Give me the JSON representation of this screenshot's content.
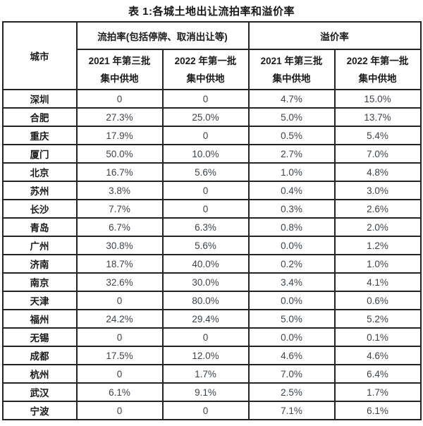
{
  "title": "表 1:各城土地出让流拍率和溢价率",
  "chart_data": {
    "type": "table",
    "title": "表 1:各城土地出让流拍率和溢价率",
    "columns": {
      "city": "城市",
      "groups": [
        {
          "label": "流拍率(包括停牌、取消出让等)",
          "subcolumns": [
            "2021 年第三批\n集中供地",
            "2022 年第一批\n集中供地"
          ]
        },
        {
          "label": "溢价率",
          "subcolumns": [
            "2021 年第三批\n集中供地",
            "2022 年第一批\n集中供地"
          ]
        }
      ]
    },
    "rows": [
      {
        "city": "深圳",
        "values": [
          "0",
          "0",
          "4.7%",
          "15.0%"
        ]
      },
      {
        "city": "合肥",
        "values": [
          "27.3%",
          "25.0%",
          "5.0%",
          "13.7%"
        ]
      },
      {
        "city": "重庆",
        "values": [
          "17.9%",
          "0",
          "0.5%",
          "5.4%"
        ]
      },
      {
        "city": "厦门",
        "values": [
          "50.0%",
          "10.0%",
          "2.7%",
          "7.0%"
        ]
      },
      {
        "city": "北京",
        "values": [
          "16.7%",
          "5.6%",
          "1.0%",
          "4.8%"
        ]
      },
      {
        "city": "苏州",
        "values": [
          "3.8%",
          "0",
          "0.4%",
          "3.0%"
        ]
      },
      {
        "city": "长沙",
        "values": [
          "7.7%",
          "0",
          "0.3%",
          "2.6%"
        ]
      },
      {
        "city": "青岛",
        "values": [
          "6.7%",
          "6.3%",
          "0.8%",
          "2.0%"
        ]
      },
      {
        "city": "广州",
        "values": [
          "30.8%",
          "5.6%",
          "0.0%",
          "1.2%"
        ]
      },
      {
        "city": "济南",
        "values": [
          "18.7%",
          "40.0%",
          "0.2%",
          "1.0%"
        ]
      },
      {
        "city": "南京",
        "values": [
          "32.6%",
          "30.0%",
          "3.4%",
          "4.1%"
        ]
      },
      {
        "city": "天津",
        "values": [
          "0",
          "80.0%",
          "0.0%",
          "0.6%"
        ]
      },
      {
        "city": "福州",
        "values": [
          "24.2%",
          "29.4%",
          "5.0%",
          "5.2%"
        ]
      },
      {
        "city": "无锡",
        "values": [
          "0",
          "0",
          "0.0%",
          "0.1%"
        ]
      },
      {
        "city": "成都",
        "values": [
          "17.5%",
          "12.0%",
          "4.6%",
          "4.6%"
        ]
      },
      {
        "city": "杭州",
        "values": [
          "0",
          "1.7%",
          "7.0%",
          "6.4%"
        ]
      },
      {
        "city": "武汉",
        "values": [
          "6.1%",
          "9.1%",
          "2.5%",
          "1.7%"
        ]
      },
      {
        "city": "宁波",
        "values": [
          "0",
          "0",
          "7.1%",
          "6.1%"
        ]
      }
    ]
  },
  "colors": {
    "header_text": "#1b1b1b",
    "data_text": "#3d434b",
    "border": "#242424",
    "background": "#ffffff"
  }
}
